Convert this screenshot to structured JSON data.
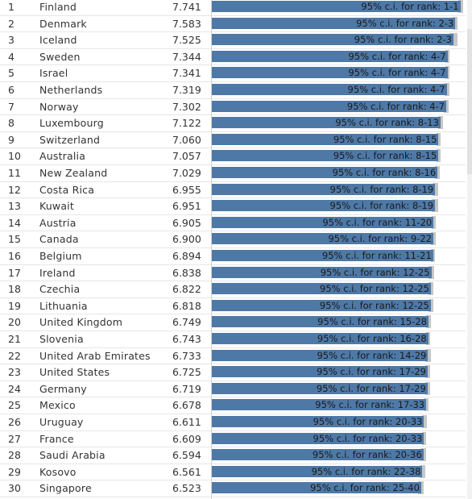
{
  "chart_data": {
    "type": "bar",
    "xlim": [
      0,
      7.9
    ],
    "ci_label_prefix": "95% c.i. for rank: ",
    "rows": [
      {
        "rank": "1",
        "country": "Finland",
        "score": "7.741",
        "value": 7.741,
        "ci": "1-1",
        "ci_low": 7.67,
        "ci_high": 7.815
      },
      {
        "rank": "2",
        "country": "Denmark",
        "score": "7.583",
        "value": 7.583,
        "ci": "2-3",
        "ci_low": 7.51,
        "ci_high": 7.655
      },
      {
        "rank": "3",
        "country": "Iceland",
        "score": "7.525",
        "value": 7.525,
        "ci": "2-3",
        "ci_low": 7.41,
        "ci_high": 7.64
      },
      {
        "rank": "4",
        "country": "Sweden",
        "score": "7.344",
        "value": 7.344,
        "ci": "4-7",
        "ci_low": 7.28,
        "ci_high": 7.41
      },
      {
        "rank": "5",
        "country": "Israel",
        "score": "7.341",
        "value": 7.341,
        "ci": "4-7",
        "ci_low": 7.27,
        "ci_high": 7.41
      },
      {
        "rank": "6",
        "country": "Netherlands",
        "score": "7.319",
        "value": 7.319,
        "ci": "4-7",
        "ci_low": 7.25,
        "ci_high": 7.39
      },
      {
        "rank": "7",
        "country": "Norway",
        "score": "7.302",
        "value": 7.302,
        "ci": "4-7",
        "ci_low": 7.23,
        "ci_high": 7.37
      },
      {
        "rank": "8",
        "country": "Luxembourg",
        "score": "7.122",
        "value": 7.122,
        "ci": "8-13",
        "ci_low": 7.04,
        "ci_high": 7.2
      },
      {
        "rank": "9",
        "country": "Switzerland",
        "score": "7.060",
        "value": 7.06,
        "ci": "8-15",
        "ci_low": 6.99,
        "ci_high": 7.13
      },
      {
        "rank": "10",
        "country": "Australia",
        "score": "7.057",
        "value": 7.057,
        "ci": "8-15",
        "ci_low": 6.99,
        "ci_high": 7.12
      },
      {
        "rank": "11",
        "country": "New Zealand",
        "score": "7.029",
        "value": 7.029,
        "ci": "8-16",
        "ci_low": 6.95,
        "ci_high": 7.11
      },
      {
        "rank": "12",
        "country": "Costa Rica",
        "score": "6.955",
        "value": 6.955,
        "ci": "8-19",
        "ci_low": 6.87,
        "ci_high": 7.04
      },
      {
        "rank": "13",
        "country": "Kuwait",
        "score": "6.951",
        "value": 6.951,
        "ci": "8-19",
        "ci_low": 6.86,
        "ci_high": 7.04
      },
      {
        "rank": "14",
        "country": "Austria",
        "score": "6.905",
        "value": 6.905,
        "ci": "11-20",
        "ci_low": 6.84,
        "ci_high": 6.97
      },
      {
        "rank": "15",
        "country": "Canada",
        "score": "6.900",
        "value": 6.9,
        "ci": "9-22",
        "ci_low": 6.83,
        "ci_high": 6.97
      },
      {
        "rank": "16",
        "country": "Belgium",
        "score": "6.894",
        "value": 6.894,
        "ci": "11-21",
        "ci_low": 6.83,
        "ci_high": 6.96
      },
      {
        "rank": "17",
        "country": "Ireland",
        "score": "6.838",
        "value": 6.838,
        "ci": "12-25",
        "ci_low": 6.76,
        "ci_high": 6.92
      },
      {
        "rank": "18",
        "country": "Czechia",
        "score": "6.822",
        "value": 6.822,
        "ci": "12-25",
        "ci_low": 6.75,
        "ci_high": 6.9
      },
      {
        "rank": "19",
        "country": "Lithuania",
        "score": "6.818",
        "value": 6.818,
        "ci": "12-25",
        "ci_low": 6.74,
        "ci_high": 6.9
      },
      {
        "rank": "20",
        "country": "United Kingdom",
        "score": "6.749",
        "value": 6.749,
        "ci": "15-28",
        "ci_low": 6.68,
        "ci_high": 6.82
      },
      {
        "rank": "21",
        "country": "Slovenia",
        "score": "6.743",
        "value": 6.743,
        "ci": "16-28",
        "ci_low": 6.68,
        "ci_high": 6.81
      },
      {
        "rank": "22",
        "country": "United Arab Emirates",
        "score": "6.733",
        "value": 6.733,
        "ci": "14-29",
        "ci_low": 6.65,
        "ci_high": 6.82
      },
      {
        "rank": "23",
        "country": "United States",
        "score": "6.725",
        "value": 6.725,
        "ci": "17-29",
        "ci_low": 6.65,
        "ci_high": 6.8
      },
      {
        "rank": "24",
        "country": "Germany",
        "score": "6.719",
        "value": 6.719,
        "ci": "17-29",
        "ci_low": 6.65,
        "ci_high": 6.79
      },
      {
        "rank": "25",
        "country": "Mexico",
        "score": "6.678",
        "value": 6.678,
        "ci": "17-33",
        "ci_low": 6.6,
        "ci_high": 6.76
      },
      {
        "rank": "26",
        "country": "Uruguay",
        "score": "6.611",
        "value": 6.611,
        "ci": "20-33",
        "ci_low": 6.54,
        "ci_high": 6.69
      },
      {
        "rank": "27",
        "country": "France",
        "score": "6.609",
        "value": 6.609,
        "ci": "20-33",
        "ci_low": 6.54,
        "ci_high": 6.68
      },
      {
        "rank": "28",
        "country": "Saudi Arabia",
        "score": "6.594",
        "value": 6.594,
        "ci": "20-36",
        "ci_low": 6.5,
        "ci_high": 6.68
      },
      {
        "rank": "29",
        "country": "Kosovo",
        "score": "6.561",
        "value": 6.561,
        "ci": "22-38",
        "ci_low": 6.47,
        "ci_high": 6.65
      },
      {
        "rank": "30",
        "country": "Singapore",
        "score": "6.523",
        "value": 6.523,
        "ci": "25-40",
        "ci_low": 6.43,
        "ci_high": 6.61
      }
    ]
  },
  "colors": {
    "bar": "#4e79a7",
    "ci_band": "#c7c7c7",
    "text": "#333333",
    "row_border": "#e6e6e6"
  }
}
